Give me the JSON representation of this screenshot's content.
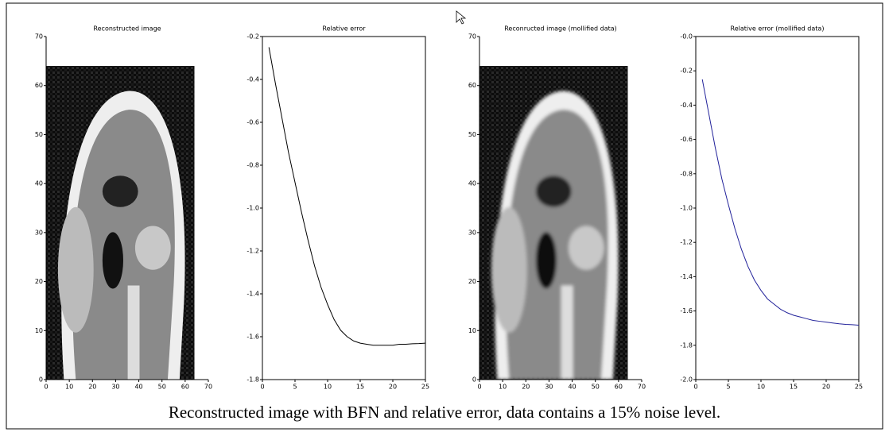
{
  "chart_data": [
    {
      "type": "image",
      "title": "Reconstructed image",
      "xlim": [
        0,
        70
      ],
      "ylim": [
        0,
        70
      ],
      "xticks": [
        0,
        10,
        20,
        30,
        40,
        50,
        60,
        70
      ],
      "yticks": [
        0,
        10,
        20,
        30,
        40,
        50,
        60,
        70
      ],
      "image_extent": {
        "x": [
          0,
          64
        ],
        "y": [
          0,
          64
        ]
      }
    },
    {
      "type": "line",
      "title": "Relative error",
      "color": "#000000",
      "xlim": [
        0,
        25
      ],
      "ylim": [
        -1.8,
        -0.2
      ],
      "xticks": [
        0,
        5,
        10,
        15,
        20,
        25
      ],
      "yticks": [
        -1.8,
        -1.6,
        -1.4,
        -1.2,
        {
          "value": -1,
          "label": "-1.0"
        },
        -0.8,
        -0.6,
        -0.4,
        -0.2
      ],
      "x": [
        1,
        2,
        3,
        4,
        5,
        6,
        7,
        8,
        9,
        10,
        11,
        12,
        13,
        14,
        15,
        16,
        17,
        18,
        19,
        20,
        21,
        22,
        23,
        24,
        25
      ],
      "values": [
        -0.25,
        -0.42,
        -0.58,
        -0.74,
        -0.88,
        -1.02,
        -1.15,
        -1.27,
        -1.37,
        -1.45,
        -1.52,
        -1.57,
        -1.6,
        -1.62,
        -1.63,
        -1.635,
        -1.64,
        -1.64,
        -1.64,
        -1.64,
        -1.635,
        -1.635,
        -1.633,
        -1.632,
        -1.63
      ]
    },
    {
      "type": "image",
      "title": "Reconructed image (mollified data)",
      "xlim": [
        0,
        70
      ],
      "ylim": [
        0,
        70
      ],
      "xticks": [
        0,
        10,
        20,
        30,
        40,
        50,
        60,
        70
      ],
      "yticks": [
        0,
        10,
        20,
        30,
        40,
        50,
        60,
        70
      ],
      "image_extent": {
        "x": [
          0,
          64
        ],
        "y": [
          0,
          64
        ]
      }
    },
    {
      "type": "line",
      "title": "Relative error (mollified data)",
      "color": "#22229a",
      "xlim": [
        0,
        25
      ],
      "ylim": [
        -2,
        0
      ],
      "xticks": [
        0,
        5,
        10,
        15,
        20,
        25
      ],
      "yticks": [
        {
          "value": -2,
          "label": "-2.0"
        },
        -1.8,
        -1.6,
        -1.4,
        -1.2,
        {
          "value": -1,
          "label": "-1.0"
        },
        -0.8,
        -0.6,
        -0.4,
        -0.2,
        {
          "value": 0,
          "label": "-0.0"
        }
      ],
      "x": [
        1,
        2,
        3,
        4,
        5,
        6,
        7,
        8,
        9,
        10,
        11,
        12,
        13,
        14,
        15,
        16,
        17,
        18,
        19,
        20,
        21,
        22,
        23,
        24,
        25
      ],
      "values": [
        -0.25,
        -0.45,
        -0.65,
        -0.83,
        -0.98,
        -1.12,
        -1.24,
        -1.34,
        -1.42,
        -1.48,
        -1.53,
        -1.56,
        -1.59,
        -1.61,
        -1.625,
        -1.635,
        -1.645,
        -1.655,
        -1.66,
        -1.665,
        -1.67,
        -1.675,
        -1.678,
        -1.68,
        -1.683
      ]
    }
  ],
  "caption": "Reconstructed image with BFN and relative error, data contains a 15% noise level."
}
